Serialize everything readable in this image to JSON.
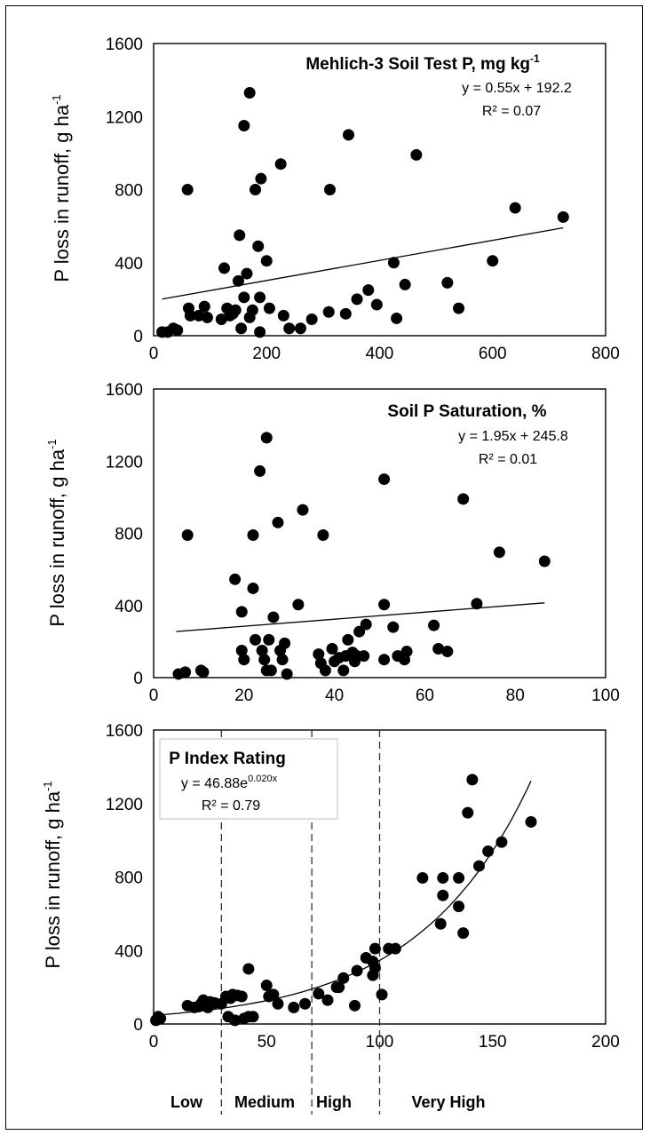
{
  "chart_data": [
    {
      "type": "scatter",
      "title": "Mehlich-3 Soil Test P, mg kg",
      "title_sup": "-1",
      "ylabel": "P loss in runoff, g ha",
      "ylabel_sup": "-1",
      "xlim": [
        0,
        800
      ],
      "ylim": [
        0,
        1600
      ],
      "xticks": [
        0,
        200,
        400,
        600,
        800
      ],
      "yticks": [
        0,
        400,
        800,
        1200,
        1600
      ],
      "equation": "y = 0.55x + 192.2",
      "r2": "R² = 0.07",
      "trend": {
        "kind": "linear",
        "slope": 0.55,
        "intercept": 192.2,
        "x_from": 15,
        "x_to": 725
      },
      "points": [
        [
          15,
          20
        ],
        [
          25,
          20
        ],
        [
          35,
          40
        ],
        [
          42,
          30
        ],
        [
          60,
          800
        ],
        [
          62,
          150
        ],
        [
          65,
          110
        ],
        [
          80,
          110
        ],
        [
          90,
          160
        ],
        [
          95,
          100
        ],
        [
          120,
          90
        ],
        [
          125,
          370
        ],
        [
          130,
          150
        ],
        [
          135,
          110
        ],
        [
          140,
          120
        ],
        [
          145,
          140
        ],
        [
          150,
          300
        ],
        [
          152,
          550
        ],
        [
          155,
          40
        ],
        [
          160,
          210
        ],
        [
          160,
          1150
        ],
        [
          165,
          340
        ],
        [
          170,
          1330
        ],
        [
          170,
          100
        ],
        [
          175,
          140
        ],
        [
          180,
          800
        ],
        [
          185,
          490
        ],
        [
          188,
          20
        ],
        [
          188,
          210
        ],
        [
          190,
          860
        ],
        [
          200,
          410
        ],
        [
          205,
          150
        ],
        [
          225,
          940
        ],
        [
          230,
          110
        ],
        [
          240,
          40
        ],
        [
          260,
          40
        ],
        [
          280,
          90
        ],
        [
          310,
          130
        ],
        [
          312,
          800
        ],
        [
          340,
          120
        ],
        [
          345,
          1100
        ],
        [
          360,
          200
        ],
        [
          380,
          250
        ],
        [
          395,
          170
        ],
        [
          425,
          400
        ],
        [
          430,
          95
        ],
        [
          445,
          280
        ],
        [
          465,
          990
        ],
        [
          520,
          290
        ],
        [
          540,
          150
        ],
        [
          600,
          410
        ],
        [
          640,
          700
        ],
        [
          725,
          650
        ]
      ]
    },
    {
      "type": "scatter",
      "title": "Soil P Saturation, %",
      "ylabel": "P loss in runoff, g ha",
      "ylabel_sup": "-1",
      "xlim": [
        0,
        100
      ],
      "ylim": [
        0,
        1600
      ],
      "xticks": [
        0,
        20,
        40,
        60,
        80,
        100
      ],
      "yticks": [
        0,
        400,
        800,
        1200,
        1600
      ],
      "equation": "y = 1.95x + 245.8",
      "r2": "R² = 0.01",
      "trend": {
        "kind": "linear",
        "slope": 1.95,
        "intercept": 245.8,
        "x_from": 5,
        "x_to": 86.5
      },
      "points": [
        [
          5.5,
          20
        ],
        [
          7,
          30
        ],
        [
          7.5,
          790
        ],
        [
          10.5,
          40
        ],
        [
          11,
          30
        ],
        [
          18,
          545
        ],
        [
          19.5,
          150
        ],
        [
          19.5,
          365
        ],
        [
          20,
          100
        ],
        [
          22,
          790
        ],
        [
          22,
          495
        ],
        [
          22.5,
          210
        ],
        [
          23.5,
          1145
        ],
        [
          24,
          150
        ],
        [
          24.5,
          100
        ],
        [
          25,
          40
        ],
        [
          25,
          1330
        ],
        [
          25.5,
          210
        ],
        [
          26,
          40
        ],
        [
          26.5,
          335
        ],
        [
          27.5,
          860
        ],
        [
          28,
          150
        ],
        [
          28.5,
          100
        ],
        [
          29,
          190
        ],
        [
          29.5,
          20
        ],
        [
          32,
          405
        ],
        [
          33,
          930
        ],
        [
          36.5,
          130
        ],
        [
          37,
          80
        ],
        [
          37.5,
          790
        ],
        [
          38,
          40
        ],
        [
          39.5,
          160
        ],
        [
          40,
          90
        ],
        [
          41,
          110
        ],
        [
          42,
          40
        ],
        [
          42.5,
          120
        ],
        [
          43,
          210
        ],
        [
          44,
          140
        ],
        [
          44.5,
          90
        ],
        [
          45,
          120
        ],
        [
          45.5,
          255
        ],
        [
          46.5,
          120
        ],
        [
          47,
          295
        ],
        [
          51,
          100
        ],
        [
          51,
          405
        ],
        [
          51,
          1100
        ],
        [
          53,
          280
        ],
        [
          54,
          120
        ],
        [
          55.5,
          100
        ],
        [
          56,
          145
        ],
        [
          62,
          290
        ],
        [
          63,
          160
        ],
        [
          65,
          145
        ],
        [
          68.5,
          990
        ],
        [
          71.5,
          410
        ],
        [
          76.5,
          695
        ],
        [
          86.5,
          645
        ]
      ]
    },
    {
      "type": "scatter",
      "title": "P Index Rating",
      "ylabel": "P loss in runoff, g ha",
      "ylabel_sup": "-1",
      "xlim": [
        0,
        200
      ],
      "ylim": [
        0,
        1600
      ],
      "xticks": [
        0,
        50,
        100,
        150,
        200
      ],
      "yticks": [
        0,
        400,
        800,
        1200,
        1600
      ],
      "equation_base": "y = 46.88e",
      "equation_exp": "0.020x",
      "r2": "R² = 0.79",
      "trend": {
        "kind": "exponential",
        "a": 46.88,
        "b": 0.02,
        "x_from": 0,
        "x_to": 167
      },
      "thresholds": [
        30,
        70,
        100
      ],
      "categories": [
        "Low",
        "Medium",
        "High",
        "Very High"
      ],
      "points": [
        [
          1,
          20
        ],
        [
          2,
          40
        ],
        [
          2,
          25
        ],
        [
          3,
          30
        ],
        [
          15,
          100
        ],
        [
          18,
          90
        ],
        [
          20,
          95
        ],
        [
          21,
          110
        ],
        [
          22,
          130
        ],
        [
          24,
          90
        ],
        [
          25,
          120
        ],
        [
          27,
          115
        ],
        [
          30,
          110
        ],
        [
          32,
          150
        ],
        [
          33,
          40
        ],
        [
          34,
          140
        ],
        [
          35,
          160
        ],
        [
          36,
          20
        ],
        [
          37,
          155
        ],
        [
          39,
          150
        ],
        [
          40,
          30
        ],
        [
          42,
          300
        ],
        [
          42,
          40
        ],
        [
          44,
          40
        ],
        [
          50,
          210
        ],
        [
          51,
          150
        ],
        [
          53,
          160
        ],
        [
          55,
          110
        ],
        [
          62,
          90
        ],
        [
          67,
          110
        ],
        [
          73,
          165
        ],
        [
          77,
          130
        ],
        [
          81,
          200
        ],
        [
          82,
          200
        ],
        [
          84,
          250
        ],
        [
          89,
          100
        ],
        [
          90,
          290
        ],
        [
          94,
          360
        ],
        [
          97,
          340
        ],
        [
          97,
          265
        ],
        [
          98,
          410
        ],
        [
          98,
          305
        ],
        [
          101,
          160
        ],
        [
          104,
          410
        ],
        [
          107,
          410
        ],
        [
          119,
          795
        ],
        [
          127,
          545
        ],
        [
          128,
          795
        ],
        [
          128,
          700
        ],
        [
          135,
          795
        ],
        [
          135,
          640
        ],
        [
          137,
          495
        ],
        [
          139,
          1150
        ],
        [
          141,
          1330
        ],
        [
          144,
          860
        ],
        [
          148,
          940
        ],
        [
          154,
          990
        ],
        [
          167,
          1100
        ]
      ]
    }
  ]
}
